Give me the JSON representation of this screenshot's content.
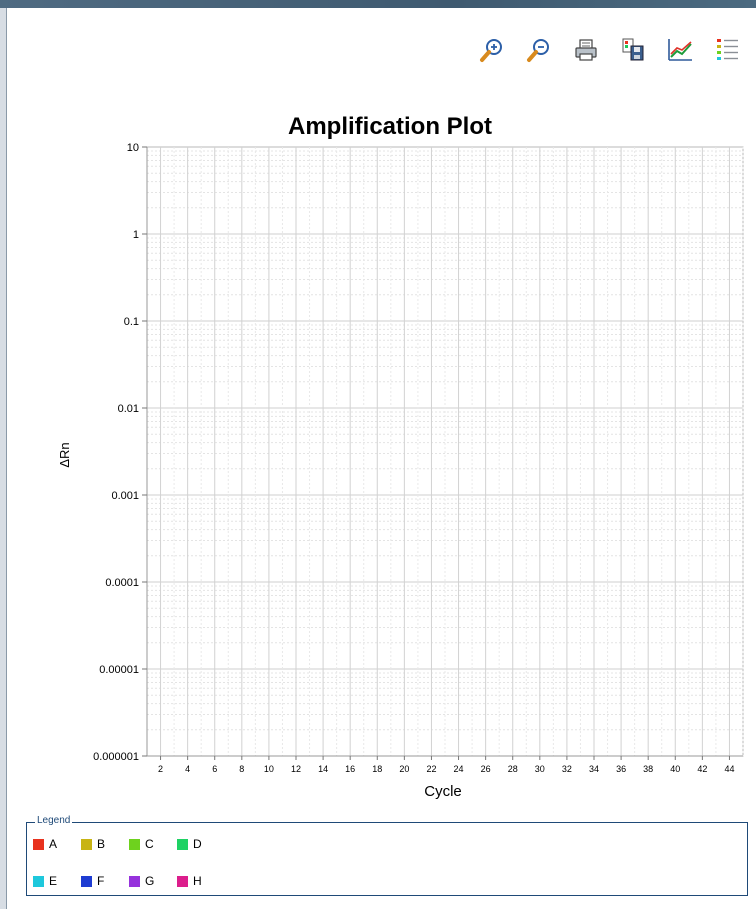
{
  "toolbar": {
    "buttons": [
      {
        "name": "zoom-in-icon"
      },
      {
        "name": "zoom-out-icon"
      },
      {
        "name": "print-icon"
      },
      {
        "name": "export-icon"
      },
      {
        "name": "plot-settings-icon"
      },
      {
        "name": "legend-toggle-icon"
      }
    ]
  },
  "chart_data": {
    "type": "line",
    "title": "Amplification Plot",
    "xlabel": "Cycle",
    "ylabel": "ΔRn",
    "yscale": "log",
    "ylim": [
      1e-06,
      10
    ],
    "yticks": [
      "10",
      "1",
      "0.1",
      "0.01",
      "0.001",
      "0.0001",
      "0.00001",
      "0.000001"
    ],
    "xlim": [
      1,
      45
    ],
    "xticks": [
      2,
      4,
      6,
      8,
      10,
      12,
      14,
      16,
      18,
      20,
      22,
      24,
      26,
      28,
      30,
      32,
      34,
      36,
      38,
      40,
      42,
      44
    ],
    "grid": true,
    "series": []
  },
  "legend": {
    "title": "Legend",
    "rows": [
      [
        {
          "label": "A",
          "color": "#e8321e"
        },
        {
          "label": "B",
          "color": "#c8b414"
        },
        {
          "label": "C",
          "color": "#6ed21e"
        },
        {
          "label": "D",
          "color": "#1ed264"
        }
      ],
      [
        {
          "label": "E",
          "color": "#1ec8dc"
        },
        {
          "label": "F",
          "color": "#1e3cd2"
        },
        {
          "label": "G",
          "color": "#9632dc"
        },
        {
          "label": "H",
          "color": "#dc1e8c"
        }
      ]
    ]
  }
}
